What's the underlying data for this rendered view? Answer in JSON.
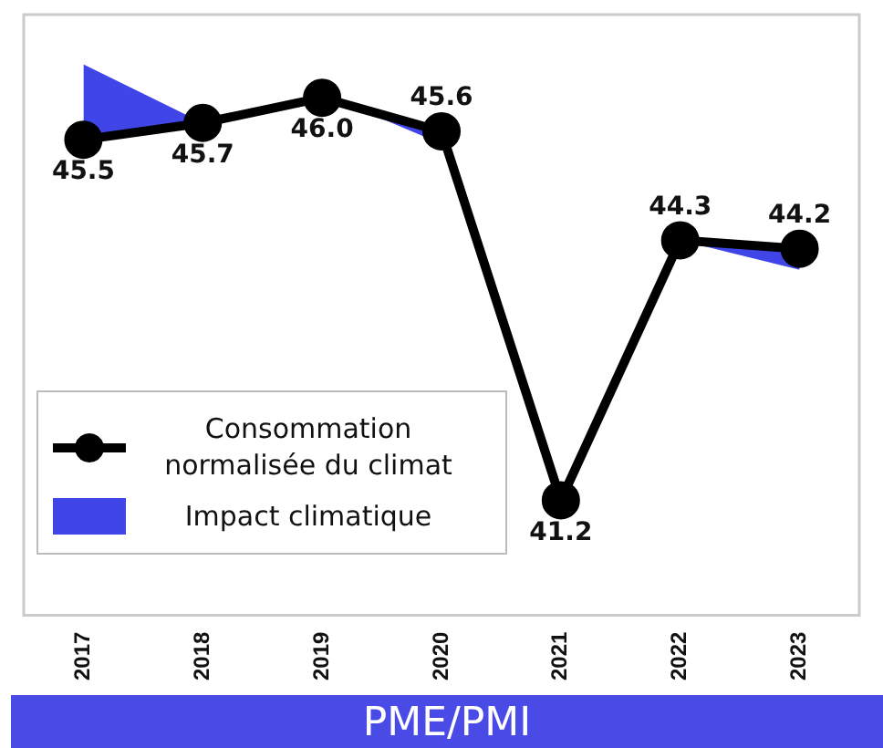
{
  "chart_data": {
    "type": "line",
    "title": "PME/PMI",
    "categories": [
      "2017",
      "2018",
      "2019",
      "2020",
      "2021",
      "2022",
      "2023"
    ],
    "series": [
      {
        "name": "Consommation normalisée du climat",
        "color": "#000000",
        "marker": "circle",
        "values": [
          45.5,
          45.7,
          46.0,
          45.6,
          41.2,
          44.3,
          44.2
        ],
        "value_labels": [
          "45.5",
          "45.7",
          "46.0",
          "45.6",
          "41.2",
          "44.3",
          "44.2"
        ]
      },
      {
        "name": "Impact climatique",
        "type": "area",
        "color": "#3f45e6",
        "values": [
          46.4,
          45.7,
          46.05,
          45.45,
          41.2,
          44.3,
          43.95
        ]
      }
    ],
    "legend": "left",
    "grid": false
  }
}
